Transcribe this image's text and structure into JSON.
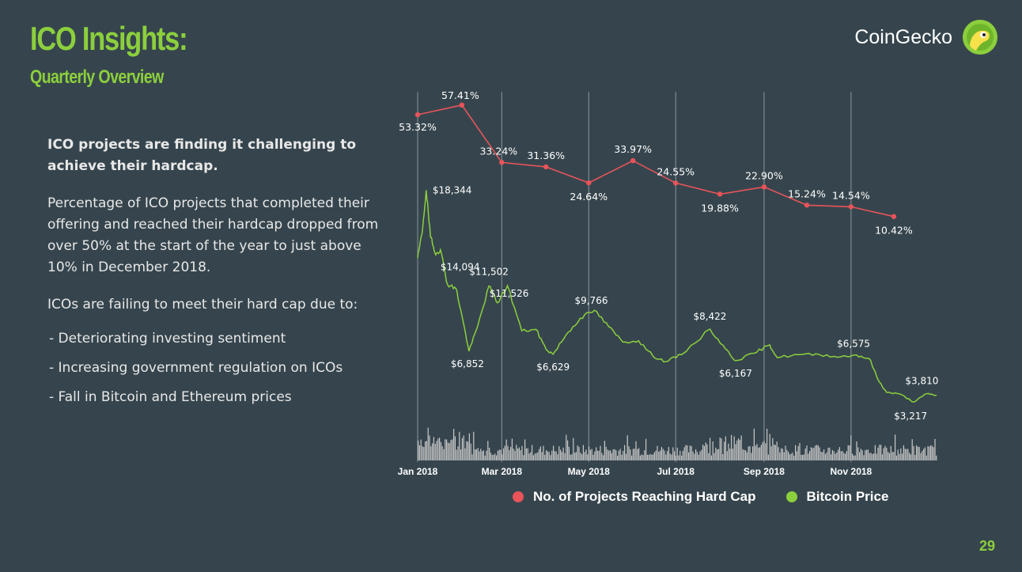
{
  "header": {
    "title": "ICO Insights:",
    "subtitle": "Quarterly Overview"
  },
  "brand": {
    "name": "CoinGecko",
    "icon": "gecko-logo-icon"
  },
  "text": {
    "lead": "ICO projects are finding it challenging to achieve their hardcap.",
    "paragraph": "Percentage of ICO projects that completed their offering and reached their hardcap dropped from over 50% at the start of the year to just above 10% in December 2018.",
    "intro": "ICOs are failing to meet their hard cap due to:",
    "bullets": [
      "- Deteriorating investing sentiment",
      "- Increasing government regulation on ICOs",
      "- Fall in Bitcoin and Ethereum prices"
    ]
  },
  "page_number": "29",
  "colors": {
    "background": "#36454d",
    "accent": "#8ccf3d",
    "hardcap_series": "#e8545a",
    "bitcoin_series": "#8ccf3d",
    "volume_bars": "#c9c9c9",
    "gridlines": "#8a969c"
  },
  "chart_data": {
    "type": "line",
    "x_ticks": [
      "Jan 2018",
      "Mar 2018",
      "May 2018",
      "Jul 2018",
      "Sep 2018",
      "Nov 2018"
    ],
    "grid": "vertical lines at x-axis ticks",
    "legend": "bottom",
    "series": [
      {
        "name": "No. of Projects Reaching Hard Cap",
        "color": "#e8545a",
        "points": [
          {
            "x": "2018-01",
            "y": 53.32,
            "label": "53.32%"
          },
          {
            "x": "2018-02",
            "y": 57.41,
            "label": "57.41%"
          },
          {
            "x": "2018-03",
            "y": 33.24,
            "label": "33.24%"
          },
          {
            "x": "2018-04",
            "y": 31.36,
            "label": "31.36%"
          },
          {
            "x": "2018-05",
            "y": 24.64,
            "label": "24.64%"
          },
          {
            "x": "2018-06",
            "y": 33.97,
            "label": "33.97%"
          },
          {
            "x": "2018-07",
            "y": 24.55,
            "label": "24.55%"
          },
          {
            "x": "2018-08",
            "y": 19.88,
            "label": "19.88%"
          },
          {
            "x": "2018-09",
            "y": 22.9,
            "label": "22.90%"
          },
          {
            "x": "2018-10",
            "y": 15.24,
            "label": "15.24%"
          },
          {
            "x": "2018-11",
            "y": 14.54,
            "label": "14.54%"
          },
          {
            "x": "2018-12",
            "y": 10.42,
            "label": "10.42%"
          }
        ]
      },
      {
        "name": "Bitcoin Price",
        "color": "#8ccf3d",
        "points": [
          {
            "x": "2018-01-01",
            "y": 13500
          },
          {
            "x": "2018-01-04",
            "y": 15200
          },
          {
            "x": "2018-01-07",
            "y": 18344,
            "label": "$18,344"
          },
          {
            "x": "2018-01-10",
            "y": 15000
          },
          {
            "x": "2018-01-13",
            "y": 13900
          },
          {
            "x": "2018-01-17",
            "y": 14094,
            "label": "$14,094"
          },
          {
            "x": "2018-01-22",
            "y": 11600
          },
          {
            "x": "2018-01-28",
            "y": 11300
          },
          {
            "x": "2018-02-01",
            "y": 9400
          },
          {
            "x": "2018-02-06",
            "y": 6852,
            "label": "$6,852"
          },
          {
            "x": "2018-02-12",
            "y": 8600
          },
          {
            "x": "2018-02-20",
            "y": 11502,
            "label": "$11,502"
          },
          {
            "x": "2018-02-26",
            "y": 10300
          },
          {
            "x": "2018-03-05",
            "y": 11526,
            "label": "$11,526"
          },
          {
            "x": "2018-03-15",
            "y": 8300
          },
          {
            "x": "2018-03-25",
            "y": 8400
          },
          {
            "x": "2018-04-01",
            "y": 7000
          },
          {
            "x": "2018-04-06",
            "y": 6629,
            "label": "$6,629"
          },
          {
            "x": "2018-04-15",
            "y": 8000
          },
          {
            "x": "2018-04-25",
            "y": 9200
          },
          {
            "x": "2018-05-05",
            "y": 9766,
            "label": "$9,766"
          },
          {
            "x": "2018-05-15",
            "y": 8600
          },
          {
            "x": "2018-05-25",
            "y": 7500
          },
          {
            "x": "2018-06-05",
            "y": 7600
          },
          {
            "x": "2018-06-15",
            "y": 6500
          },
          {
            "x": "2018-06-24",
            "y": 6100
          },
          {
            "x": "2018-07-05",
            "y": 6600
          },
          {
            "x": "2018-07-25",
            "y": 8422,
            "label": "$8,422"
          },
          {
            "x": "2018-08-05",
            "y": 7000
          },
          {
            "x": "2018-08-12",
            "y": 6167,
            "label": "$6,167"
          },
          {
            "x": "2018-08-25",
            "y": 6700
          },
          {
            "x": "2018-09-05",
            "y": 7300
          },
          {
            "x": "2018-09-10",
            "y": 6400
          },
          {
            "x": "2018-09-25",
            "y": 6600
          },
          {
            "x": "2018-10-10",
            "y": 6600
          },
          {
            "x": "2018-10-25",
            "y": 6450
          },
          {
            "x": "2018-11-05",
            "y": 6575,
            "label": "$6,575"
          },
          {
            "x": "2018-11-14",
            "y": 6300
          },
          {
            "x": "2018-11-20",
            "y": 4800
          },
          {
            "x": "2018-11-26",
            "y": 3900
          },
          {
            "x": "2018-12-05",
            "y": 3800
          },
          {
            "x": "2018-12-15",
            "y": 3217,
            "label": "$3,217"
          },
          {
            "x": "2018-12-24",
            "y": 3810,
            "label": "$3,810"
          },
          {
            "x": "2018-12-31",
            "y": 3700
          }
        ]
      }
    ],
    "volume_bars": "unlabeled daily trading-volume bars along the bottom"
  }
}
